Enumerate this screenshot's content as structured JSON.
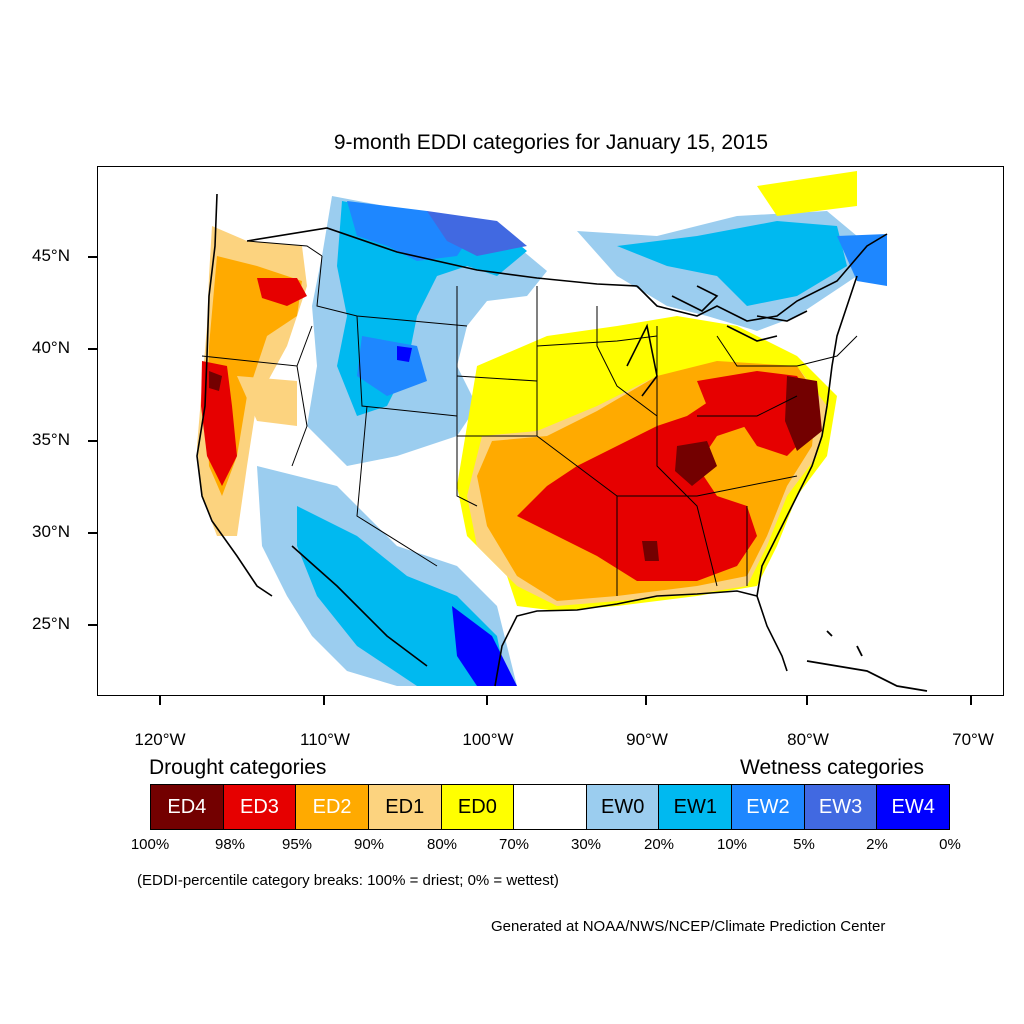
{
  "title": "9-month EDDI categories for January 15, 2015",
  "lat_labels": [
    "45°N",
    "40°N",
    "35°N",
    "30°N",
    "25°N"
  ],
  "lon_labels": [
    "120°W",
    "110°W",
    "100°W",
    "90°W",
    "80°W",
    "70°W"
  ],
  "drought_heading": "Drought categories",
  "wetness_heading": "Wetness categories",
  "legend": [
    {
      "label": "ED4",
      "color": "#730000",
      "text_color": "#ffffff"
    },
    {
      "label": "ED3",
      "color": "#e60000",
      "text_color": "#ffffff"
    },
    {
      "label": "ED2",
      "color": "#ffaa00",
      "text_color": "#ffffff"
    },
    {
      "label": "ED1",
      "color": "#fcd37f",
      "text_color": "#000000"
    },
    {
      "label": "ED0",
      "color": "#ffff00",
      "text_color": "#000000"
    },
    {
      "label": "",
      "color": "#ffffff",
      "text_color": "#000000"
    },
    {
      "label": "EW0",
      "color": "#9bcdef",
      "text_color": "#000000"
    },
    {
      "label": "EW1",
      "color": "#00b9f0",
      "text_color": "#000000"
    },
    {
      "label": "EW2",
      "color": "#1e87ff",
      "text_color": "#ffffff"
    },
    {
      "label": "EW3",
      "color": "#4169e1",
      "text_color": "#ffffff"
    },
    {
      "label": "EW4",
      "color": "#0000ff",
      "text_color": "#ffffff"
    }
  ],
  "percentile_labels": [
    "100%",
    "98%",
    "95%",
    "90%",
    "80%",
    "70%",
    "30%",
    "20%",
    "10%",
    "5%",
    "2%",
    "0%"
  ],
  "note": "(EDDI-percentile category breaks: 100% = driest; 0% = wettest)",
  "credit": "Generated at NOAA/NWS/NCEP/Climate Prediction Center"
}
